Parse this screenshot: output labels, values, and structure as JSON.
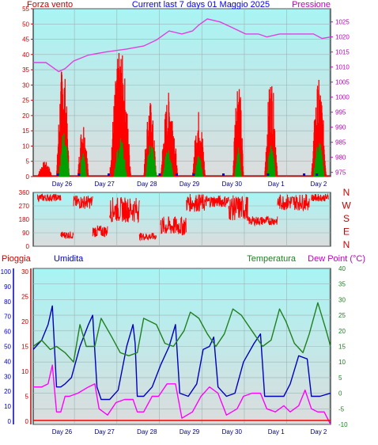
{
  "chart_data": [
    {
      "type": "line",
      "title": "Current last 7 days 01 Maggio 2025",
      "ylabel_left": "Forza vento",
      "ylabel_right": "Pressione",
      "y_left_ticks": [
        0,
        5,
        10,
        15,
        20,
        25,
        30,
        35,
        40,
        45,
        50,
        55
      ],
      "y_left_range": [
        0,
        55
      ],
      "y_right_ticks": [
        975,
        980,
        985,
        990,
        995,
        1000,
        1005,
        1010,
        1015,
        1020,
        1025
      ],
      "y_right_range": [
        973.6,
        1029.4
      ],
      "x_ticks": [
        "Day 26",
        "Day 27",
        "Day 28",
        "Day 29",
        "Day 30",
        "Day 1",
        "Day 2"
      ],
      "x_range": [
        0,
        7
      ],
      "grid": true,
      "series": [
        {
          "axis": "right",
          "color": "#e040e0",
          "points": [
            [
              0,
              1011.5
            ],
            [
              0.3,
              1011.5
            ],
            [
              0.45,
              1010
            ],
            [
              0.6,
              1008.5
            ],
            [
              0.75,
              1009.5
            ],
            [
              0.95,
              1012
            ],
            [
              1.3,
              1014
            ],
            [
              1.7,
              1015
            ],
            [
              2.2,
              1016
            ],
            [
              2.6,
              1017
            ],
            [
              2.9,
              1019
            ],
            [
              3.2,
              1022
            ],
            [
              3.5,
              1021
            ],
            [
              3.75,
              1022
            ],
            [
              3.9,
              1024
            ],
            [
              4.1,
              1026
            ],
            [
              4.4,
              1025
            ],
            [
              4.7,
              1023
            ],
            [
              5.0,
              1021
            ],
            [
              5.3,
              1021
            ],
            [
              5.5,
              1020
            ],
            [
              5.8,
              1021
            ],
            [
              6.3,
              1021
            ],
            [
              6.6,
              1021
            ],
            [
              6.8,
              1019.5
            ],
            [
              7.0,
              1020
            ]
          ]
        },
        {
          "axis": "left",
          "color": "#ff0000",
          "name": "",
          "bursts": [
            [
              0.1,
              0.45,
              5
            ],
            [
              0.55,
              0.85,
              38
            ],
            [
              1.05,
              1.3,
              19
            ],
            [
              1.8,
              2.3,
              42
            ],
            [
              2.6,
              2.9,
              25
            ],
            [
              3.0,
              3.4,
              28
            ],
            [
              3.75,
              4.05,
              22
            ],
            [
              4.7,
              4.95,
              35
            ],
            [
              5.45,
              5.75,
              33
            ],
            [
              6.55,
              6.9,
              32
            ]
          ]
        },
        {
          "axis": "left",
          "color": "#00a000",
          "bursts": [
            [
              0.6,
              0.85,
              15
            ],
            [
              1.1,
              1.25,
              8
            ],
            [
              1.9,
              2.2,
              13
            ],
            [
              2.65,
              2.9,
              12
            ],
            [
              3.05,
              3.3,
              9
            ],
            [
              3.8,
              4.0,
              7
            ],
            [
              4.75,
              4.9,
              10
            ],
            [
              5.5,
              5.7,
              11
            ],
            [
              6.6,
              6.85,
              12
            ]
          ]
        }
      ]
    },
    {
      "type": "scatter",
      "ylabel_right": [
        "N",
        "W",
        "S",
        "E",
        "N"
      ],
      "y_left_ticks": [
        0,
        90,
        180,
        270,
        360
      ],
      "y_left_range": [
        0,
        360
      ],
      "x_range": [
        0,
        7
      ],
      "series": [
        {
          "color": "#ff0000",
          "segments": [
            [
              0.1,
              0.65,
              300,
              350
            ],
            [
              0.65,
              0.95,
              50,
              100
            ],
            [
              0.95,
              1.4,
              250,
              340
            ],
            [
              1.4,
              1.75,
              60,
              140
            ],
            [
              1.8,
              2.5,
              160,
              330
            ],
            [
              2.5,
              2.9,
              40,
              90
            ],
            [
              3.0,
              3.6,
              70,
              200
            ],
            [
              3.6,
              4.05,
              230,
              350
            ],
            [
              4.05,
              4.6,
              260,
              340
            ],
            [
              4.6,
              5.05,
              170,
              340
            ],
            [
              5.05,
              5.75,
              140,
              200
            ],
            [
              5.75,
              6.5,
              240,
              350
            ],
            [
              6.55,
              6.95,
              300,
              350
            ]
          ]
        }
      ]
    },
    {
      "type": "line",
      "ylabel_left_outer": "Pioggia",
      "ylabel_left_inner": "Umidita",
      "ylabel_right_inner": "Temperatura",
      "ylabel_right_outer": "Dew Point (°C)",
      "y_rain_ticks": [
        0,
        10,
        20,
        30,
        40,
        50,
        60,
        70,
        80,
        90,
        100
      ],
      "y_hum_ticks": [
        0,
        5,
        10,
        15,
        20,
        25,
        30
      ],
      "y_temp_ticks": [
        -10,
        -5,
        0,
        5,
        10,
        15,
        20,
        25,
        30,
        35,
        40
      ],
      "y_temp_range": [
        -10,
        40
      ],
      "x_ticks": [
        "Day 26",
        "Day 27",
        "Day 28",
        "Day 29",
        "Day 30",
        "Day 1",
        "Day 2"
      ],
      "x_range": [
        0,
        7
      ],
      "grid": true,
      "series": [
        {
          "color": "#0000c0",
          "axis": "temp",
          "points": [
            [
              0,
              14
            ],
            [
              0.2,
              17
            ],
            [
              0.35,
              22
            ],
            [
              0.45,
              28
            ],
            [
              0.55,
              2
            ],
            [
              0.65,
              2
            ],
            [
              0.75,
              3
            ],
            [
              0.9,
              5
            ],
            [
              1.1,
              15
            ],
            [
              1.3,
              22
            ],
            [
              1.4,
              25
            ],
            [
              1.5,
              2
            ],
            [
              1.6,
              -2
            ],
            [
              1.8,
              -2
            ],
            [
              2.0,
              1
            ],
            [
              2.2,
              15
            ],
            [
              2.35,
              22
            ],
            [
              2.4,
              16
            ],
            [
              2.45,
              -1
            ],
            [
              2.6,
              -1
            ],
            [
              2.8,
              2
            ],
            [
              3.0,
              9
            ],
            [
              3.2,
              15
            ],
            [
              3.35,
              22
            ],
            [
              3.45,
              0
            ],
            [
              3.65,
              -1
            ],
            [
              3.85,
              3
            ],
            [
              4.0,
              14
            ],
            [
              4.15,
              15
            ],
            [
              4.25,
              18
            ],
            [
              4.35,
              2
            ],
            [
              4.55,
              -1
            ],
            [
              4.75,
              0
            ],
            [
              4.95,
              10
            ],
            [
              5.2,
              16
            ],
            [
              5.35,
              19
            ],
            [
              5.45,
              -1
            ],
            [
              5.6,
              -1
            ],
            [
              5.9,
              -1
            ],
            [
              6.05,
              3
            ],
            [
              6.25,
              12
            ],
            [
              6.45,
              11
            ],
            [
              6.55,
              -1
            ],
            [
              6.75,
              -1
            ],
            [
              7.0,
              0
            ]
          ]
        },
        {
          "color": "#208020",
          "axis": "temp",
          "points": [
            [
              0,
              15
            ],
            [
              0.2,
              17
            ],
            [
              0.4,
              14
            ],
            [
              0.55,
              15
            ],
            [
              0.75,
              13
            ],
            [
              0.95,
              10
            ],
            [
              1.1,
              22
            ],
            [
              1.25,
              15
            ],
            [
              1.45,
              15
            ],
            [
              1.6,
              24
            ],
            [
              1.85,
              18
            ],
            [
              2.05,
              13
            ],
            [
              2.25,
              12
            ],
            [
              2.45,
              13
            ],
            [
              2.6,
              24
            ],
            [
              2.9,
              22
            ],
            [
              3.1,
              16
            ],
            [
              3.3,
              15
            ],
            [
              3.55,
              20
            ],
            [
              3.7,
              26
            ],
            [
              3.9,
              24
            ],
            [
              4.1,
              19
            ],
            [
              4.3,
              15
            ],
            [
              4.5,
              19
            ],
            [
              4.7,
              27
            ],
            [
              4.9,
              25
            ],
            [
              5.2,
              19
            ],
            [
              5.4,
              15
            ],
            [
              5.6,
              17
            ],
            [
              5.8,
              27
            ],
            [
              5.95,
              23
            ],
            [
              6.15,
              16
            ],
            [
              6.35,
              13
            ],
            [
              6.5,
              19
            ],
            [
              6.7,
              29
            ],
            [
              6.9,
              20
            ],
            [
              7.0,
              15
            ]
          ]
        },
        {
          "color": "#ff00ff",
          "axis": "temp",
          "points": [
            [
              0,
              2
            ],
            [
              0.2,
              2
            ],
            [
              0.35,
              3
            ],
            [
              0.45,
              9
            ],
            [
              0.55,
              -6
            ],
            [
              0.65,
              -6
            ],
            [
              0.75,
              -1
            ],
            [
              0.85,
              -1
            ],
            [
              1.05,
              0
            ],
            [
              1.3,
              2
            ],
            [
              1.45,
              3
            ],
            [
              1.55,
              -5
            ],
            [
              1.75,
              -7
            ],
            [
              1.95,
              -3
            ],
            [
              2.15,
              -2
            ],
            [
              2.35,
              -2
            ],
            [
              2.45,
              -6
            ],
            [
              2.6,
              -6
            ],
            [
              2.8,
              -1
            ],
            [
              2.95,
              -1
            ],
            [
              3.15,
              3
            ],
            [
              3.35,
              3
            ],
            [
              3.5,
              -8
            ],
            [
              3.75,
              -6
            ],
            [
              3.95,
              -1
            ],
            [
              4.15,
              2
            ],
            [
              4.35,
              0
            ],
            [
              4.55,
              -7
            ],
            [
              4.8,
              -5
            ],
            [
              4.95,
              -1
            ],
            [
              5.15,
              0
            ],
            [
              5.35,
              0
            ],
            [
              5.5,
              -5
            ],
            [
              5.7,
              -6
            ],
            [
              5.9,
              -4
            ],
            [
              6.05,
              -6
            ],
            [
              6.25,
              -4
            ],
            [
              6.4,
              1
            ],
            [
              6.55,
              -5
            ],
            [
              6.7,
              -6
            ],
            [
              6.85,
              -6
            ],
            [
              7.0,
              -10
            ]
          ]
        },
        {
          "color": "#ff0000",
          "axis": "rain",
          "points": [
            [
              0,
              0
            ],
            [
              7,
              0
            ]
          ]
        }
      ]
    }
  ]
}
